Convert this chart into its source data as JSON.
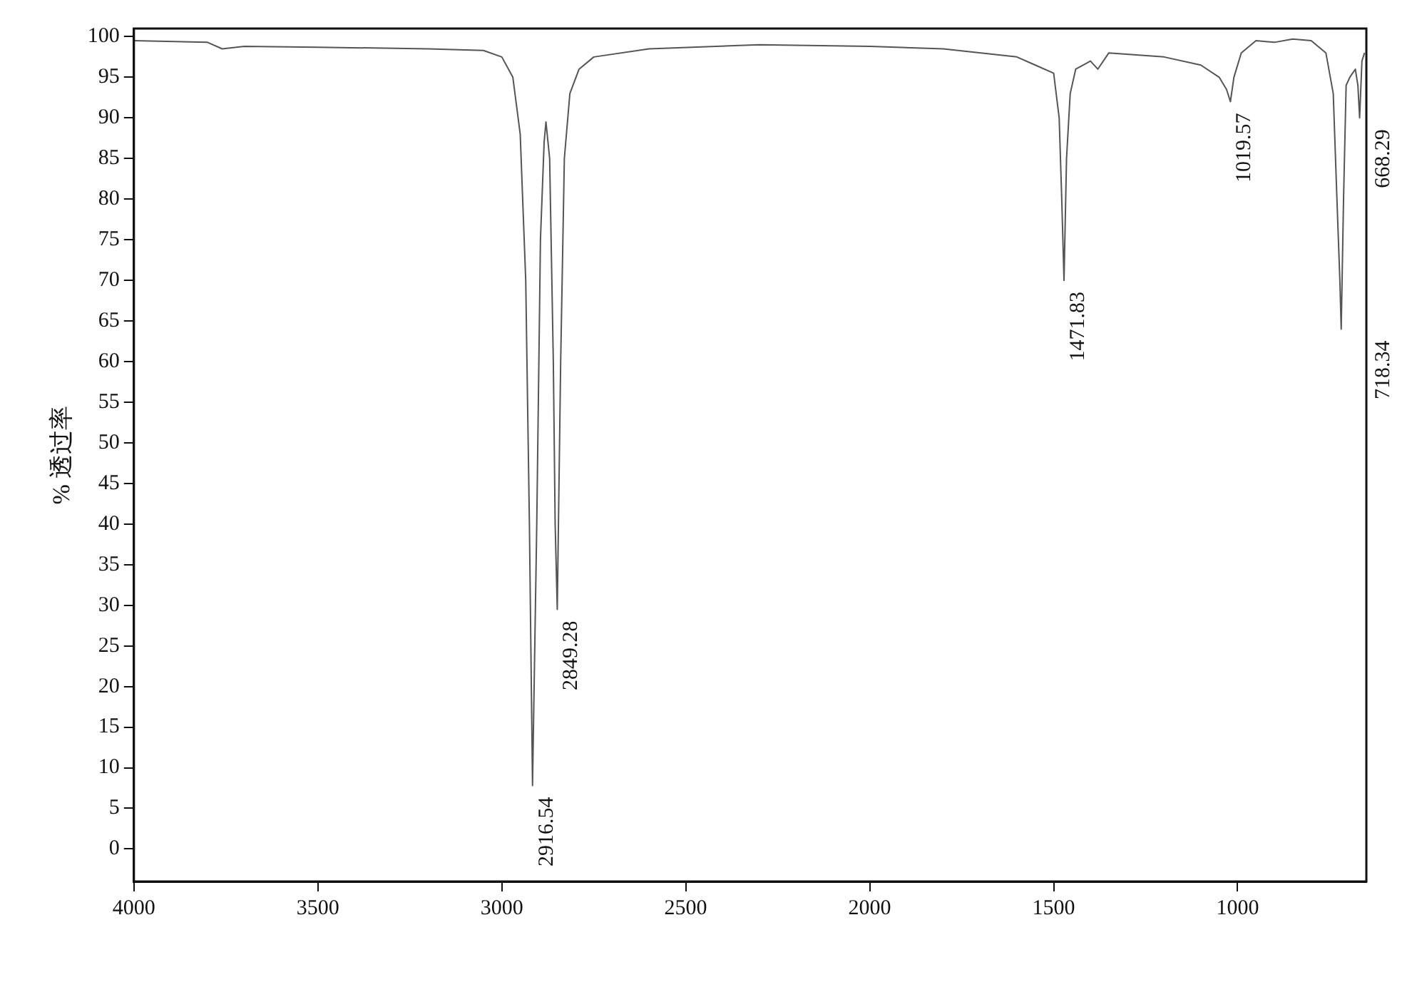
{
  "chart_data": {
    "type": "line",
    "ylabel": "% 透过率",
    "x": [
      4000,
      3800,
      3760,
      3700,
      3500,
      3200,
      3050,
      3000,
      2970,
      2950,
      2935,
      2925,
      2916.54,
      2905,
      2895,
      2885,
      2880,
      2870,
      2860,
      2855,
      2849.28,
      2840,
      2830,
      2815,
      2790,
      2750,
      2600,
      2300,
      2000,
      1800,
      1600,
      1550,
      1500,
      1485,
      1478,
      1471.83,
      1465,
      1455,
      1440,
      1400,
      1380,
      1350,
      1200,
      1100,
      1050,
      1030,
      1019.57,
      1010,
      990,
      950,
      900,
      850,
      800,
      760,
      740,
      730,
      722,
      718.34,
      712,
      705,
      695,
      680,
      673,
      668.29,
      662,
      655
    ],
    "series": [
      {
        "color": "#555555",
        "values": [
          99.5,
          99.3,
          98.5,
          98.8,
          98.7,
          98.5,
          98.3,
          97.5,
          95,
          88,
          70,
          40,
          7.8,
          40,
          75,
          87,
          89.5,
          85,
          60,
          40,
          29.5,
          60,
          85,
          93,
          96,
          97.5,
          98.5,
          99,
          98.8,
          98.5,
          97.5,
          96.5,
          95.5,
          90,
          80,
          70,
          85,
          93,
          96,
          97,
          96,
          98,
          97.5,
          96.5,
          95,
          93.5,
          92,
          95,
          98,
          99.5,
          99.3,
          99.7,
          99.5,
          98,
          93,
          80,
          70,
          64,
          80,
          94,
          95,
          96,
          94,
          90,
          97,
          98
        ]
      }
    ],
    "xlim": [
      4000,
      650
    ],
    "xticks": [
      4000,
      3500,
      3000,
      2500,
      2000,
      1500,
      1000
    ],
    "ylim": [
      -4,
      101
    ],
    "yticks": [
      0,
      5,
      10,
      15,
      20,
      25,
      30,
      35,
      40,
      45,
      50,
      55,
      60,
      65,
      70,
      75,
      80,
      85,
      90,
      95,
      100
    ],
    "grid": false,
    "legend": false,
    "marker": "none",
    "line_style": "solid",
    "annotations": [
      {
        "text": "2916.54",
        "x": 2916.54,
        "y": 7.8
      },
      {
        "text": "2849.28",
        "x": 2849.28,
        "y": 29.5
      },
      {
        "text": "1471.83",
        "x": 1471.83,
        "y": 70
      },
      {
        "text": "1019.57",
        "x": 1019.57,
        "y": 92
      },
      {
        "text": "718.34",
        "x": 718.34,
        "y": 64
      },
      {
        "text": "668.29",
        "x": 668.29,
        "y": 90
      }
    ]
  }
}
